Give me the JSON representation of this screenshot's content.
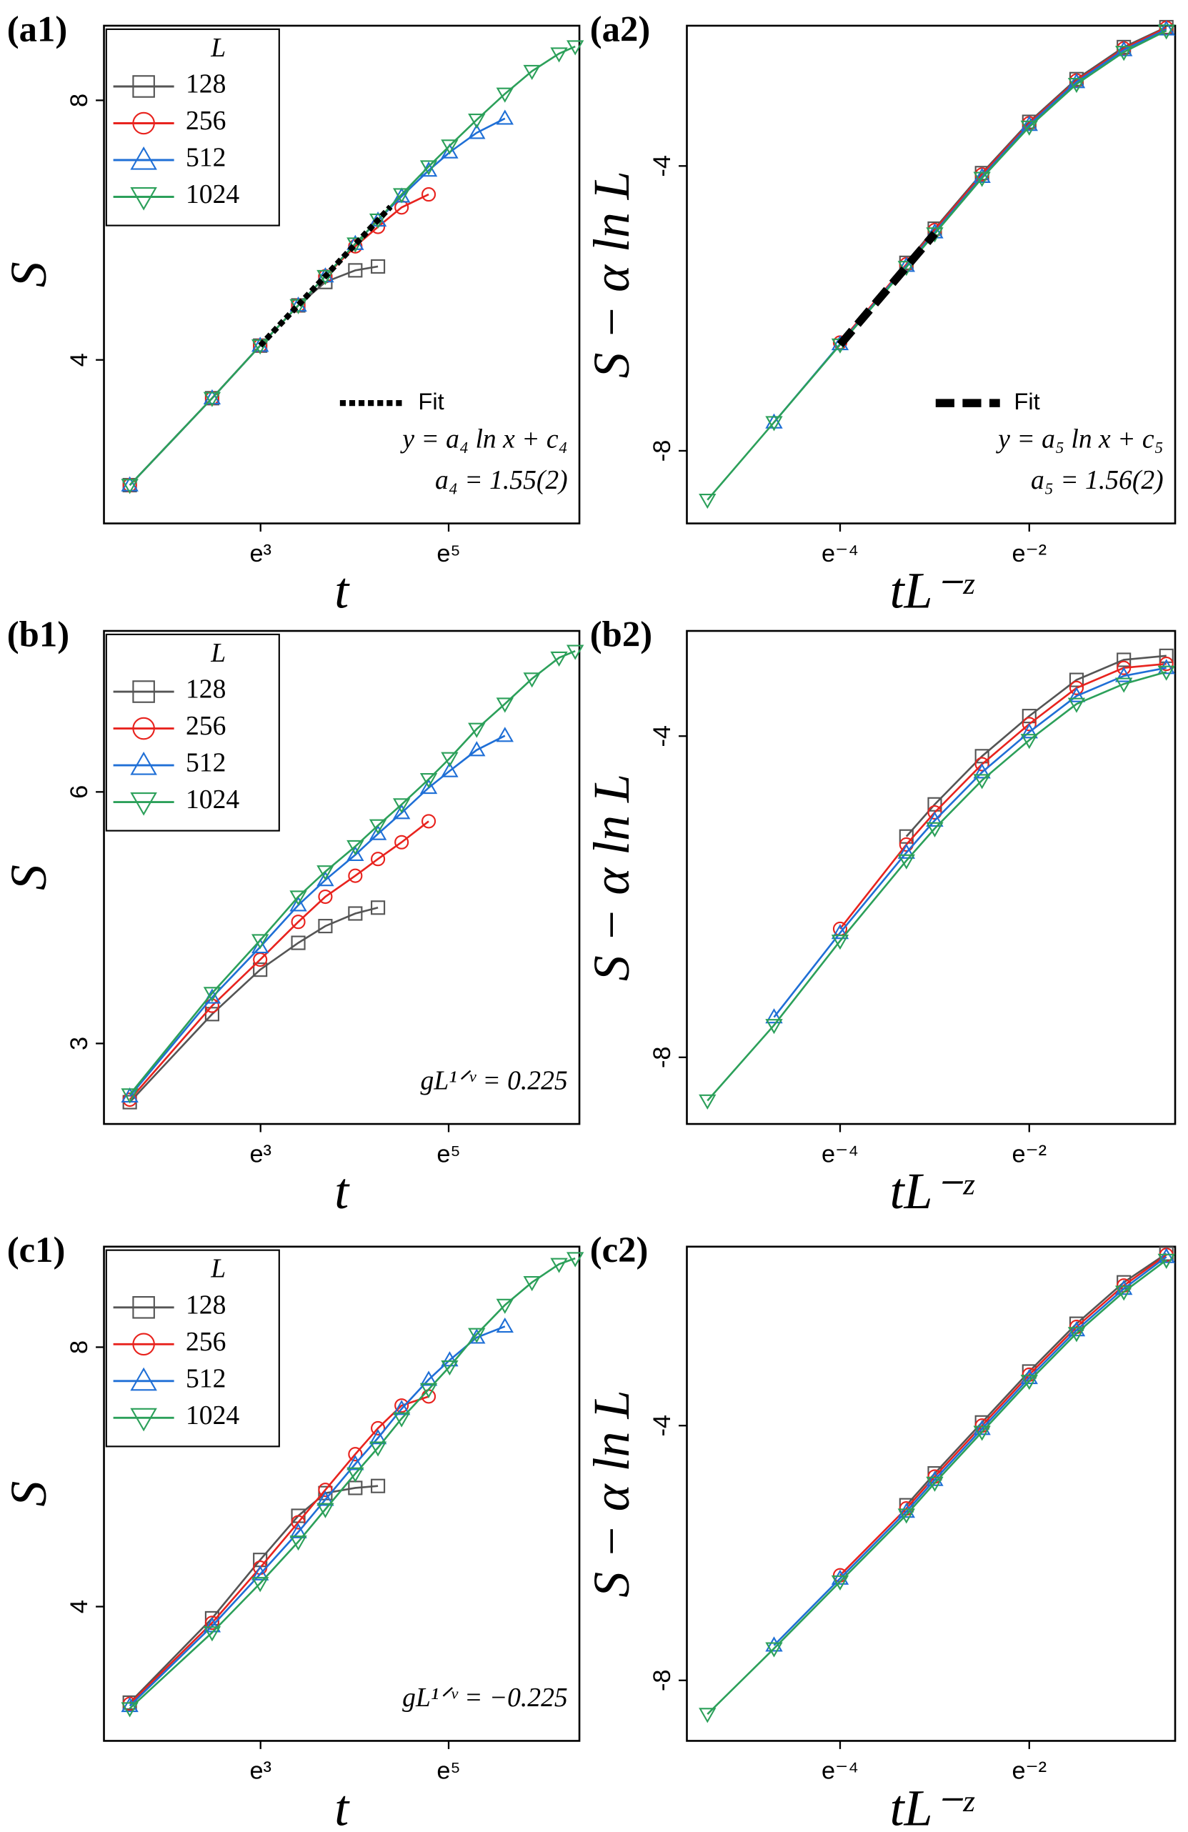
{
  "chart_data": [
    {
      "type": "line",
      "panel_label": "(a1)",
      "xlabel": "t",
      "ylabel": "S",
      "xscale": "log",
      "xlim": [
        3.8,
        596
      ],
      "ylim": [
        1.48,
        9.15
      ],
      "xticks": [
        {
          "value": 20.086,
          "label": "e³"
        },
        {
          "value": 148.41,
          "label": "e⁵"
        }
      ],
      "yticks": [
        4,
        8
      ],
      "legend": "upper left",
      "legend_title": "L",
      "series": [
        {
          "name": "128",
          "color": "#555555",
          "marker": "square",
          "x": [
            5,
            12,
            20,
            30,
            40,
            55,
            70
          ],
          "values": [
            2.07,
            3.41,
            4.22,
            4.84,
            5.2,
            5.38,
            5.44
          ]
        },
        {
          "name": "256",
          "color": "#e8231e",
          "marker": "circle",
          "x": [
            5,
            12,
            20,
            30,
            40,
            55,
            70,
            90,
            120
          ],
          "values": [
            2.07,
            3.41,
            4.22,
            4.84,
            5.29,
            5.75,
            6.05,
            6.35,
            6.55
          ]
        },
        {
          "name": "512",
          "color": "#1f6fd6",
          "marker": "triangle-up",
          "x": [
            5,
            12,
            20,
            30,
            40,
            55,
            70,
            90,
            120,
            150,
            200,
            270
          ],
          "values": [
            2.07,
            3.41,
            4.22,
            4.84,
            5.29,
            5.79,
            6.15,
            6.52,
            6.92,
            7.2,
            7.5,
            7.72
          ]
        },
        {
          "name": "1024",
          "color": "#2ca05a",
          "marker": "triangle-down",
          "x": [
            5,
            12,
            20,
            30,
            40,
            55,
            70,
            90,
            120,
            150,
            200,
            270,
            360,
            480,
            570
          ],
          "values": [
            2.07,
            3.41,
            4.22,
            4.84,
            5.29,
            5.79,
            6.16,
            6.55,
            6.98,
            7.3,
            7.7,
            8.1,
            8.45,
            8.72,
            8.83
          ]
        }
      ],
      "fit": {
        "name": "Fit",
        "style": "dotted",
        "color": "#000000",
        "x": [
          20,
          80
        ],
        "values": [
          4.22,
          6.36
        ]
      },
      "annotations": [
        "y = a₄ ln x + c₄",
        "a₄ = 1.55(2)"
      ]
    },
    {
      "type": "line",
      "panel_label": "(a2)",
      "xlabel": "tL⁻ᶻ",
      "ylabel": "S − α ln L",
      "xscale": "log",
      "xlim": [
        0.00362,
        0.633
      ],
      "ylim": [
        -9.02,
        -2.03
      ],
      "xticks": [
        {
          "value": 0.0183,
          "label": "e⁻⁴"
        },
        {
          "value": 0.1353,
          "label": "e⁻²"
        }
      ],
      "yticks": [
        -8,
        -4
      ],
      "series": [
        {
          "color": "#555555",
          "marker": "square",
          "x": [
            0.0369,
            0.0498,
            0.0821,
            0.1353,
            0.2231,
            0.3679,
            0.5769
          ],
          "values": [
            -5.36,
            -4.88,
            -4.1,
            -3.38,
            -2.78,
            -2.33,
            -2.05
          ]
        },
        {
          "color": "#e8231e",
          "marker": "circle",
          "x": [
            0.0183,
            0.0369,
            0.0498,
            0.0821,
            0.1353,
            0.2231,
            0.3679,
            0.5769
          ],
          "values": [
            -6.48,
            -5.38,
            -4.9,
            -4.12,
            -3.4,
            -2.8,
            -2.35,
            -2.06
          ]
        },
        {
          "color": "#1f6fd6",
          "marker": "triangle-up",
          "x": [
            0.0091,
            0.0183,
            0.0369,
            0.0498,
            0.0821,
            0.1353,
            0.2231,
            0.3679,
            0.5769
          ],
          "values": [
            -7.6,
            -6.5,
            -5.4,
            -4.93,
            -4.15,
            -3.42,
            -2.82,
            -2.37,
            -2.08
          ]
        },
        {
          "color": "#2ca05a",
          "marker": "triangle-down",
          "x": [
            0.0045,
            0.0091,
            0.0183,
            0.0369,
            0.0498,
            0.0821,
            0.1353,
            0.2231,
            0.3679,
            0.5769
          ],
          "values": [
            -8.69,
            -7.6,
            -6.51,
            -5.42,
            -4.95,
            -4.17,
            -3.45,
            -2.85,
            -2.4,
            -2.1
          ]
        }
      ],
      "fit": {
        "name": "Fit",
        "style": "dashed",
        "color": "#000000",
        "x": [
          0.0183,
          0.0498
        ],
        "values": [
          -6.51,
          -4.95
        ]
      },
      "annotations": [
        "y = a₅ ln x + c₅",
        "a₅ = 1.56(2)"
      ]
    },
    {
      "type": "line",
      "panel_label": "(b1)",
      "xlabel": "t",
      "ylabel": "S",
      "xscale": "log",
      "xlim": [
        3.8,
        596
      ],
      "ylim": [
        2.04,
        7.92
      ],
      "xticks": [
        {
          "value": 20.086,
          "label": "e³"
        },
        {
          "value": 148.41,
          "label": "e⁵"
        }
      ],
      "yticks": [
        3,
        6
      ],
      "legend": "upper left",
      "legend_title": "L",
      "series": [
        {
          "name": "128",
          "color": "#555555",
          "marker": "square",
          "x": [
            5,
            12,
            20,
            30,
            40,
            55,
            70
          ],
          "values": [
            2.3,
            3.35,
            3.88,
            4.2,
            4.4,
            4.55,
            4.62
          ]
        },
        {
          "name": "256",
          "color": "#e8231e",
          "marker": "circle",
          "x": [
            5,
            12,
            20,
            30,
            40,
            55,
            70,
            90,
            120
          ],
          "values": [
            2.33,
            3.45,
            4.0,
            4.45,
            4.75,
            5.0,
            5.2,
            5.4,
            5.65
          ]
        },
        {
          "name": "512",
          "color": "#1f6fd6",
          "marker": "triangle-up",
          "x": [
            5,
            12,
            20,
            30,
            40,
            55,
            70,
            90,
            120,
            150,
            200,
            270
          ],
          "values": [
            2.37,
            3.55,
            4.15,
            4.65,
            4.95,
            5.25,
            5.5,
            5.75,
            6.05,
            6.25,
            6.5,
            6.67
          ]
        },
        {
          "name": "1024",
          "color": "#2ca05a",
          "marker": "triangle-down",
          "x": [
            5,
            12,
            20,
            30,
            40,
            55,
            70,
            90,
            120,
            150,
            200,
            270,
            360,
            480,
            570
          ],
          "values": [
            2.39,
            3.6,
            4.23,
            4.75,
            5.05,
            5.35,
            5.6,
            5.85,
            6.15,
            6.4,
            6.75,
            7.05,
            7.35,
            7.6,
            7.68
          ]
        }
      ],
      "annotations": [
        "gL¹ᐟᵛ = 0.225"
      ]
    },
    {
      "type": "line",
      "panel_label": "(b2)",
      "xlabel": "tL⁻ᶻ",
      "ylabel": "S − α ln L",
      "xscale": "log",
      "xlim": [
        0.00362,
        0.633
      ],
      "ylim": [
        -8.83,
        -2.69
      ],
      "xticks": [
        {
          "value": 0.0183,
          "label": "e⁻⁴"
        },
        {
          "value": 0.1353,
          "label": "e⁻²"
        }
      ],
      "yticks": [
        -8,
        -4
      ],
      "series": [
        {
          "color": "#555555",
          "marker": "square",
          "x": [
            0.0369,
            0.0498,
            0.0821,
            0.1353,
            0.2231,
            0.3679,
            0.5769
          ],
          "values": [
            -5.25,
            -4.85,
            -4.25,
            -3.75,
            -3.3,
            -3.05,
            -3.0
          ]
        },
        {
          "color": "#e8231e",
          "marker": "circle",
          "x": [
            0.0183,
            0.0369,
            0.0498,
            0.0821,
            0.1353,
            0.2231,
            0.3679,
            0.5769
          ],
          "values": [
            -6.4,
            -5.35,
            -4.95,
            -4.35,
            -3.85,
            -3.4,
            -3.15,
            -3.1
          ]
        },
        {
          "color": "#1f6fd6",
          "marker": "triangle-up",
          "x": [
            0.0091,
            0.0183,
            0.0369,
            0.0498,
            0.0821,
            0.1353,
            0.2231,
            0.3679,
            0.5769
          ],
          "values": [
            -7.5,
            -6.45,
            -5.45,
            -5.05,
            -4.45,
            -3.95,
            -3.5,
            -3.25,
            -3.15
          ]
        },
        {
          "color": "#2ca05a",
          "marker": "triangle-down",
          "x": [
            0.0045,
            0.0091,
            0.0183,
            0.0369,
            0.0498,
            0.0821,
            0.1353,
            0.2231,
            0.3679,
            0.5769
          ],
          "values": [
            -8.54,
            -7.6,
            -6.55,
            -5.55,
            -5.15,
            -4.55,
            -4.05,
            -3.6,
            -3.35,
            -3.2
          ]
        }
      ]
    },
    {
      "type": "line",
      "panel_label": "(c1)",
      "xlabel": "t",
      "ylabel": "S",
      "xscale": "log",
      "xlim": [
        3.8,
        596
      ],
      "ylim": [
        1.93,
        9.55
      ],
      "xticks": [
        {
          "value": 20.086,
          "label": "e³"
        },
        {
          "value": 148.41,
          "label": "e⁵"
        }
      ],
      "yticks": [
        4,
        8
      ],
      "legend": "upper left",
      "legend_title": "L",
      "series": [
        {
          "name": "128",
          "color": "#555555",
          "marker": "square",
          "x": [
            5,
            12,
            20,
            30,
            40,
            55,
            70
          ],
          "values": [
            2.52,
            3.82,
            4.72,
            5.4,
            5.75,
            5.83,
            5.86
          ]
        },
        {
          "name": "256",
          "color": "#e8231e",
          "marker": "circle",
          "x": [
            5,
            12,
            20,
            30,
            40,
            55,
            70,
            90,
            120
          ],
          "values": [
            2.5,
            3.75,
            4.6,
            5.3,
            5.8,
            6.35,
            6.75,
            7.1,
            7.24
          ]
        },
        {
          "name": "512",
          "color": "#1f6fd6",
          "marker": "triangle-up",
          "x": [
            5,
            12,
            20,
            30,
            40,
            55,
            70,
            90,
            120,
            150,
            200,
            270
          ],
          "values": [
            2.47,
            3.7,
            4.5,
            5.15,
            5.65,
            6.2,
            6.6,
            7.05,
            7.5,
            7.8,
            8.15,
            8.32
          ]
        },
        {
          "name": "1024",
          "color": "#2ca05a",
          "marker": "triangle-down",
          "x": [
            5,
            12,
            20,
            30,
            40,
            55,
            70,
            90,
            120,
            150,
            200,
            270,
            360,
            480,
            570
          ],
          "values": [
            2.43,
            3.6,
            4.36,
            5.0,
            5.5,
            6.05,
            6.45,
            6.9,
            7.35,
            7.7,
            8.2,
            8.65,
            9.0,
            9.28,
            9.37
          ]
        }
      ],
      "annotations": [
        "gL¹ᐟᵛ = −0.225"
      ]
    },
    {
      "type": "line",
      "panel_label": "(c2)",
      "xlabel": "tL⁻ᶻ",
      "ylabel": "S − α ln L",
      "xscale": "log",
      "xlim": [
        0.00362,
        0.633
      ],
      "ylim": [
        -8.95,
        -1.19
      ],
      "xticks": [
        {
          "value": 0.0183,
          "label": "e⁻⁴"
        },
        {
          "value": 0.1353,
          "label": "e⁻²"
        }
      ],
      "yticks": [
        -8,
        -4
      ],
      "series": [
        {
          "color": "#555555",
          "marker": "square",
          "x": [
            0.0369,
            0.0498,
            0.0821,
            0.1353,
            0.2231,
            0.3679,
            0.5769
          ],
          "values": [
            -5.25,
            -4.75,
            -3.95,
            -3.15,
            -2.4,
            -1.75,
            -1.3
          ]
        },
        {
          "color": "#e8231e",
          "marker": "circle",
          "x": [
            0.0183,
            0.0369,
            0.0498,
            0.0821,
            0.1353,
            0.2231,
            0.3679,
            0.5769
          ],
          "values": [
            -6.35,
            -5.3,
            -4.8,
            -4.0,
            -3.2,
            -2.45,
            -1.8,
            -1.32
          ]
        },
        {
          "color": "#1f6fd6",
          "marker": "triangle-up",
          "x": [
            0.0091,
            0.0183,
            0.0369,
            0.0498,
            0.0821,
            0.1353,
            0.2231,
            0.3679,
            0.5769
          ],
          "values": [
            -7.45,
            -6.4,
            -5.35,
            -4.85,
            -4.05,
            -3.25,
            -2.5,
            -1.85,
            -1.35
          ]
        },
        {
          "color": "#2ca05a",
          "marker": "triangle-down",
          "x": [
            0.0045,
            0.0091,
            0.0183,
            0.0369,
            0.0498,
            0.0821,
            0.1353,
            0.2231,
            0.3679,
            0.5769
          ],
          "values": [
            -8.53,
            -7.5,
            -6.45,
            -5.4,
            -4.9,
            -4.1,
            -3.3,
            -2.55,
            -1.9,
            -1.4
          ]
        }
      ]
    }
  ]
}
